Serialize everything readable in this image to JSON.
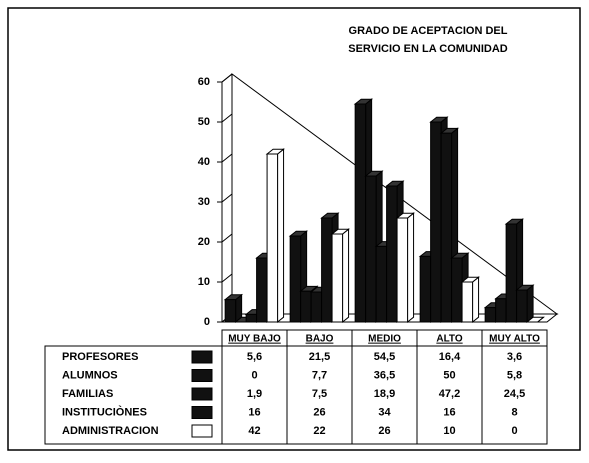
{
  "chart_data": {
    "type": "bar3d",
    "title": "GRADO DE ACEPTACION DEL",
    "subtitle": "SERVICIO EN LA COMUNIDAD",
    "categories": [
      "MUY BAJO",
      "BAJO",
      "MEDIO",
      "ALTO",
      "MUY ALTO"
    ],
    "series": [
      {
        "name": "PROFESORES",
        "color": "#111111",
        "values": [
          5.6,
          21.5,
          54.5,
          16.4,
          3.6
        ],
        "value_labels": [
          "5,6",
          "21,5",
          "54,5",
          "16,4",
          "3,6"
        ]
      },
      {
        "name": "ALUMNOS",
        "color": "#111111",
        "values": [
          0,
          7.7,
          36.5,
          50,
          5.8
        ],
        "value_labels": [
          "0",
          "7,7",
          "36,5",
          "50",
          "5,8"
        ]
      },
      {
        "name": "FAMILIAS",
        "color": "#111111",
        "values": [
          1.9,
          7.5,
          18.9,
          47.2,
          24.5
        ],
        "value_labels": [
          "1,9",
          "7,5",
          "18,9",
          "47,2",
          "24,5"
        ]
      },
      {
        "name": "INSTITUCIÒNES",
        "color": "#111111",
        "values": [
          16,
          26,
          34,
          16,
          8
        ]
      },
      {
        "name": "ADMINISTRACION",
        "color": "#ffffff",
        "values": [
          42,
          22,
          26,
          10,
          0
        ]
      }
    ],
    "ylim": [
      0,
      60
    ],
    "yticks": [
      0,
      10,
      20,
      30,
      40,
      50,
      60
    ],
    "grid": false
  }
}
